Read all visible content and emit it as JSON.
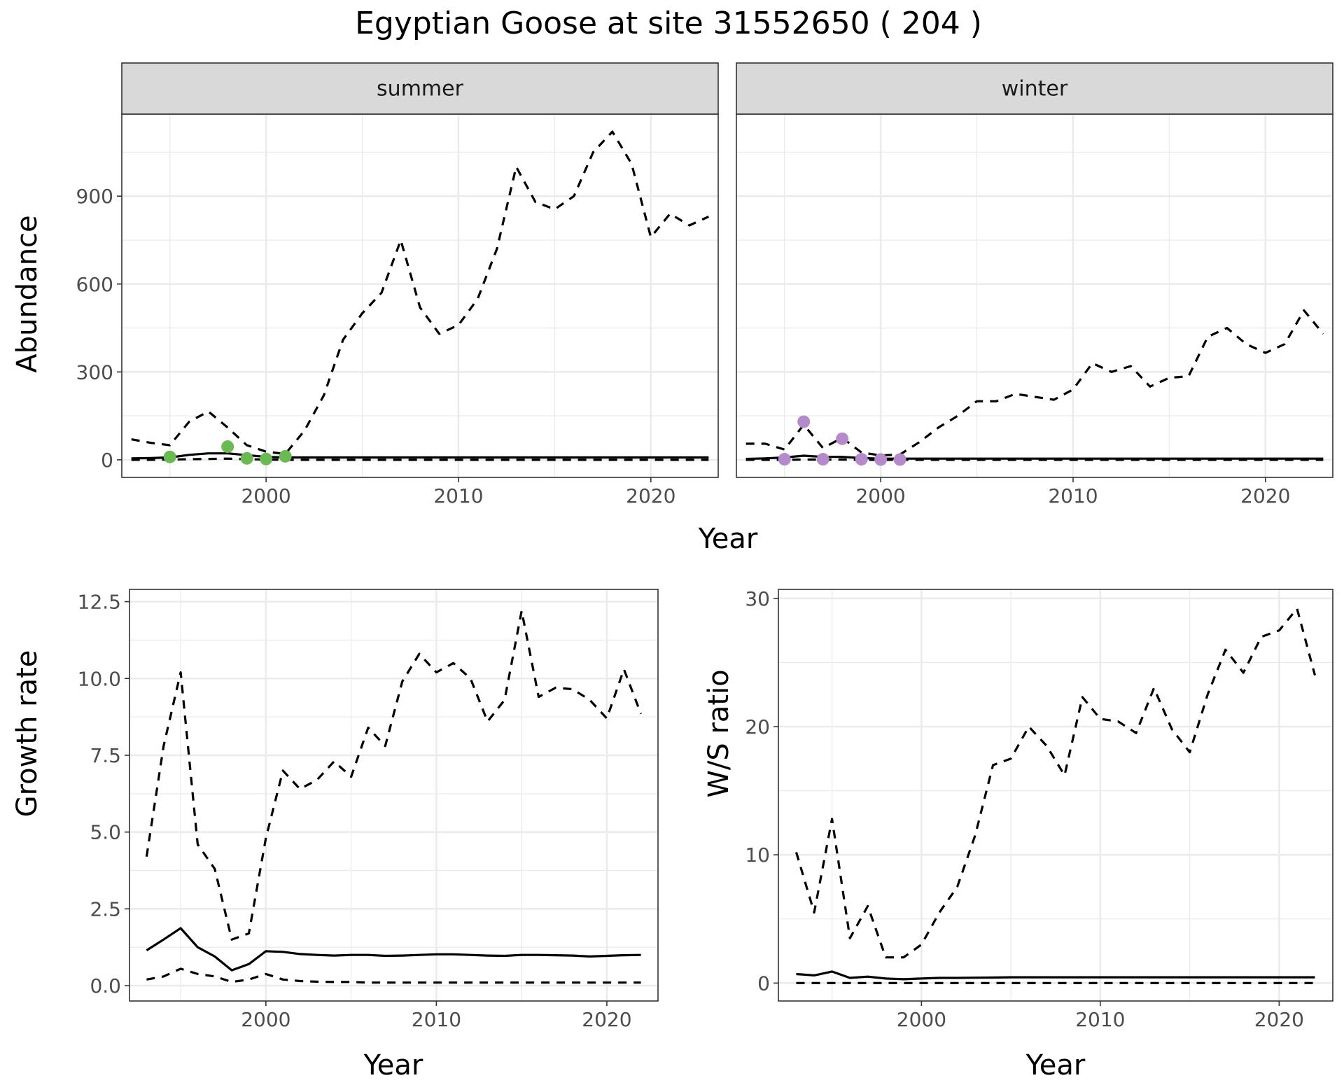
{
  "title": "Egyptian Goose at site 31552650 ( 204 )",
  "colors": {
    "summer_points": "#6ab952",
    "winter_points": "#b48acb",
    "lines": "#000000",
    "strip_fill": "#d9d9d9",
    "grid": "#ebebeb"
  },
  "chart_data": [
    {
      "type": "line",
      "facet": "summer",
      "xlabel": "Year",
      "ylabel": "Abundance",
      "xlim": [
        1992.5,
        2023.5
      ],
      "ylim": [
        -60,
        1180
      ],
      "xticks": [
        2000,
        2010,
        2020
      ],
      "yticks": [
        0,
        300,
        600,
        900
      ],
      "grid": true,
      "years": [
        1993,
        1994,
        1995,
        1996,
        1997,
        1998,
        1999,
        2000,
        2001,
        2002,
        2003,
        2004,
        2005,
        2006,
        2007,
        2008,
        2009,
        2010,
        2011,
        2012,
        2013,
        2014,
        2015,
        2016,
        2017,
        2018,
        2019,
        2020,
        2021,
        2022,
        2023
      ],
      "series": [
        {
          "role": "mean",
          "style": "solid",
          "values": [
            5,
            6,
            8,
            17,
            22,
            22,
            16,
            10,
            8,
            8,
            8,
            8,
            8,
            8,
            8,
            8,
            8,
            8,
            8,
            8,
            8,
            8,
            8,
            8,
            8,
            8,
            8,
            8,
            8,
            8,
            8
          ]
        },
        {
          "role": "upper",
          "style": "dashed",
          "values": [
            70,
            58,
            50,
            130,
            165,
            110,
            50,
            28,
            20,
            100,
            220,
            410,
            500,
            570,
            750,
            520,
            430,
            460,
            550,
            720,
            1000,
            880,
            855,
            900,
            1050,
            1120,
            1010,
            760,
            840,
            800,
            830
          ]
        },
        {
          "role": "lower",
          "style": "dashed",
          "values": [
            0,
            0,
            1,
            2,
            3,
            4,
            2,
            1,
            0,
            0,
            0,
            0,
            0,
            0,
            0,
            0,
            0,
            0,
            0,
            0,
            0,
            0,
            0,
            0,
            0,
            0,
            0,
            0,
            0,
            0,
            0
          ]
        }
      ],
      "points": {
        "x": [
          1995,
          1998,
          1999,
          2000,
          2001
        ],
        "y": [
          10,
          45,
          5,
          3,
          12
        ]
      }
    },
    {
      "type": "line",
      "facet": "winter",
      "xlabel": "Year",
      "ylabel": "Abundance",
      "xlim": [
        1992.5,
        2023.5
      ],
      "ylim": [
        -60,
        1180
      ],
      "xticks": [
        2000,
        2010,
        2020
      ],
      "yticks": [
        0,
        300,
        600,
        900
      ],
      "grid": true,
      "years": [
        1993,
        1994,
        1995,
        1996,
        1997,
        1998,
        1999,
        2000,
        2001,
        2002,
        2003,
        2004,
        2005,
        2006,
        2007,
        2008,
        2009,
        2010,
        2011,
        2012,
        2013,
        2014,
        2015,
        2016,
        2017,
        2018,
        2019,
        2020,
        2021,
        2022,
        2023
      ],
      "series": [
        {
          "role": "mean",
          "style": "solid",
          "values": [
            3,
            5,
            8,
            14,
            10,
            10,
            6,
            4,
            4,
            4,
            4,
            4,
            4,
            4,
            4,
            4,
            4,
            4,
            4,
            4,
            4,
            4,
            4,
            4,
            4,
            4,
            4,
            4,
            4,
            4,
            4
          ]
        },
        {
          "role": "upper",
          "style": "dashed",
          "values": [
            55,
            55,
            35,
            120,
            40,
            75,
            25,
            15,
            18,
            60,
            110,
            150,
            200,
            200,
            225,
            215,
            205,
            240,
            330,
            300,
            320,
            250,
            280,
            285,
            420,
            450,
            395,
            365,
            395,
            510,
            430
          ]
        },
        {
          "role": "lower",
          "style": "dashed",
          "values": [
            0,
            0,
            0,
            1,
            1,
            1,
            0,
            0,
            0,
            0,
            0,
            0,
            0,
            0,
            0,
            0,
            0,
            0,
            0,
            0,
            0,
            0,
            0,
            0,
            0,
            0,
            0,
            0,
            0,
            0,
            0
          ]
        }
      ],
      "points": {
        "x": [
          1995,
          1996,
          1997,
          1998,
          1999,
          2000,
          2001
        ],
        "y": [
          2,
          130,
          2,
          72,
          2,
          1,
          1
        ]
      }
    },
    {
      "type": "line",
      "xlabel": "Year",
      "ylabel": "Growth rate",
      "xlim": [
        1992.0,
        2023.0
      ],
      "ylim": [
        -0.5,
        12.9
      ],
      "xticks": [
        2000,
        2010,
        2020
      ],
      "yticks": [
        0.0,
        2.5,
        5.0,
        7.5,
        10.0,
        12.5
      ],
      "ytick_labels": [
        "0.0",
        "2.5",
        "5.0",
        "7.5",
        "10.0",
        "12.5"
      ],
      "grid": true,
      "years": [
        1993,
        1994,
        1995,
        1996,
        1997,
        1998,
        1999,
        2000,
        2001,
        2002,
        2003,
        2004,
        2005,
        2006,
        2007,
        2008,
        2009,
        2010,
        2011,
        2012,
        2013,
        2014,
        2015,
        2016,
        2017,
        2018,
        2019,
        2020,
        2021,
        2022
      ],
      "series": [
        {
          "role": "mean",
          "style": "solid",
          "values": [
            1.15,
            1.5,
            1.87,
            1.25,
            0.95,
            0.5,
            0.7,
            1.12,
            1.1,
            1.03,
            1.0,
            0.98,
            1.0,
            1.0,
            0.97,
            0.98,
            1.0,
            1.02,
            1.02,
            1.0,
            0.98,
            0.97,
            1.0,
            1.0,
            0.99,
            0.98,
            0.95,
            0.97,
            0.99,
            1.0
          ]
        },
        {
          "role": "upper",
          "style": "dashed",
          "values": [
            4.2,
            7.8,
            10.2,
            4.6,
            3.8,
            1.5,
            1.7,
            4.8,
            7.0,
            6.4,
            6.7,
            7.3,
            6.8,
            8.4,
            7.8,
            9.9,
            10.8,
            10.2,
            10.5,
            10.0,
            8.6,
            9.3,
            12.2,
            9.4,
            9.7,
            9.65,
            9.3,
            8.7,
            10.3,
            8.85
          ]
        },
        {
          "role": "lower",
          "style": "dashed",
          "values": [
            0.2,
            0.3,
            0.55,
            0.38,
            0.3,
            0.12,
            0.2,
            0.38,
            0.2,
            0.15,
            0.13,
            0.12,
            0.12,
            0.1,
            0.1,
            0.1,
            0.1,
            0.1,
            0.1,
            0.1,
            0.1,
            0.1,
            0.1,
            0.1,
            0.1,
            0.1,
            0.1,
            0.1,
            0.1,
            0.1
          ]
        }
      ]
    },
    {
      "type": "line",
      "xlabel": "Year",
      "ylabel": "W/S ratio",
      "xlim": [
        1992.0,
        2023.0
      ],
      "ylim": [
        -1.4,
        30.7
      ],
      "xticks": [
        2000,
        2010,
        2020
      ],
      "yticks": [
        0,
        10,
        20,
        30
      ],
      "grid": true,
      "years": [
        1993,
        1994,
        1995,
        1996,
        1997,
        1998,
        1999,
        2000,
        2001,
        2002,
        2003,
        2004,
        2005,
        2006,
        2007,
        2008,
        2009,
        2010,
        2011,
        2012,
        2013,
        2014,
        2015,
        2016,
        2017,
        2018,
        2019,
        2020,
        2021,
        2022
      ],
      "series": [
        {
          "role": "mean",
          "style": "solid",
          "values": [
            0.7,
            0.6,
            0.9,
            0.4,
            0.5,
            0.35,
            0.3,
            0.35,
            0.4,
            0.4,
            0.42,
            0.43,
            0.45,
            0.45,
            0.45,
            0.45,
            0.45,
            0.45,
            0.45,
            0.45,
            0.45,
            0.45,
            0.45,
            0.45,
            0.45,
            0.45,
            0.45,
            0.45,
            0.45,
            0.45
          ]
        },
        {
          "role": "upper",
          "style": "dashed",
          "values": [
            10.2,
            5.5,
            12.8,
            3.5,
            6.0,
            2.0,
            2.0,
            3.0,
            5.5,
            7.5,
            11.5,
            17.0,
            17.5,
            20.0,
            18.5,
            16.2,
            22.3,
            20.6,
            20.4,
            19.5,
            23.0,
            19.8,
            18.0,
            22.5,
            26.0,
            24.2,
            27.0,
            27.5,
            29.2,
            24.0
          ]
        },
        {
          "role": "lower",
          "style": "dashed",
          "values": [
            0,
            0,
            0,
            0,
            0,
            0,
            0,
            0,
            0,
            0,
            0,
            0,
            0,
            0,
            0,
            0,
            0,
            0,
            0,
            0,
            0,
            0,
            0,
            0,
            0,
            0,
            0,
            0,
            0,
            0
          ]
        }
      ]
    }
  ]
}
